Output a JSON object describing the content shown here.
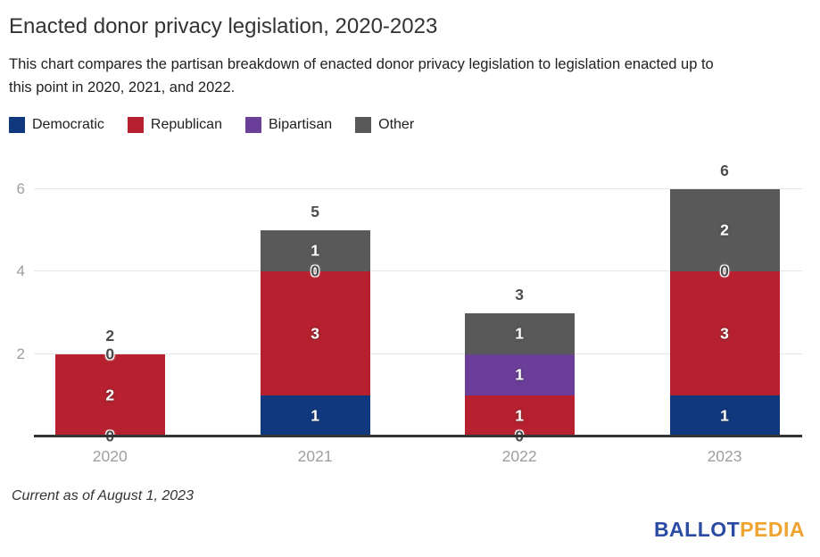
{
  "header": {
    "title": "Enacted donor privacy legislation, 2020-2023",
    "subtitle": "This chart compares the partisan breakdown of enacted donor privacy legislation to legislation enacted up to this point in 2020, 2021, and 2022.",
    "subtitle_lines": [
      "This chart compares the partisan breakdown of enacted donor privacy legislation to legislation enacted up to",
      "this point in 2020, 2021, and 2022."
    ]
  },
  "legend": [
    {
      "label": "Democratic",
      "color": "#10387e"
    },
    {
      "label": "Republican",
      "color": "#b7212f"
    },
    {
      "label": "Bipartisan",
      "color": "#6a3e99"
    },
    {
      "label": "Other",
      "color": "#595959"
    }
  ],
  "chart_data": {
    "type": "bar",
    "stacked": true,
    "title": "Enacted donor privacy legislation, 2020-2023",
    "categories": [
      "2020",
      "2021",
      "2022",
      "2023"
    ],
    "series": [
      {
        "name": "Democratic",
        "color": "#10387e",
        "values": [
          0,
          1,
          0,
          1
        ]
      },
      {
        "name": "Republican",
        "color": "#b7212f",
        "values": [
          2,
          3,
          1,
          3
        ]
      },
      {
        "name": "Bipartisan",
        "color": "#6a3e99",
        "values": [
          0,
          0,
          1,
          0
        ]
      },
      {
        "name": "Other",
        "color": "#595959",
        "values": [
          0,
          1,
          1,
          2
        ]
      }
    ],
    "totals": [
      2,
      5,
      3,
      6
    ],
    "segment_labels_shown": true,
    "zero_labels_shown": true,
    "xlabel": "",
    "ylabel": "",
    "y_ticks": [
      2,
      4,
      6
    ],
    "ylim": [
      0,
      6
    ],
    "grid": true,
    "gridline_color": "#e6e6e6",
    "axis_line_color": "#333333",
    "tick_label_color": "#9e9e9e",
    "legend_position": "top"
  },
  "footer": {
    "note": "Current as of August 1, 2023",
    "logo": {
      "part1": "BALLOT",
      "part2": "PEDIA",
      "color1": "#2b4ba5",
      "color2": "#f0a32e"
    }
  }
}
